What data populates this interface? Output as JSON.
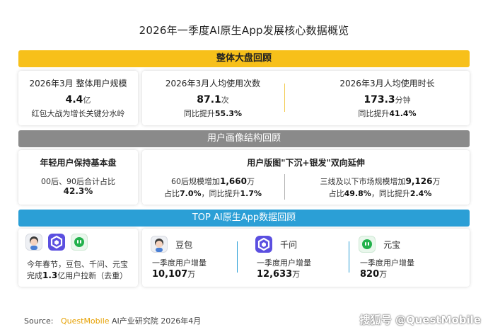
{
  "title": "2026年一季度AI原生App发展核心数据概览",
  "section1": {
    "bar": "整体大盘回顾",
    "users": {
      "head": "2026年3月 整体用户规模",
      "value": "4.4",
      "unit": "亿",
      "note": "红包大战为增长关键分水岭"
    },
    "frequency": {
      "head": "2026年3月人均使用次数",
      "value": "87.1",
      "unit": "次",
      "growth_label": "同比提升",
      "growth_value": "55.3%"
    },
    "duration": {
      "head": "2026年3月人均使用时长",
      "value": "173.3",
      "unit": "分钟",
      "growth_label": "同比提升",
      "growth_value": "41.4%"
    }
  },
  "section2": {
    "bar": "用户画像结构回顾",
    "young": {
      "head": "年轻用户保持基本盘",
      "line1": "00后、90后合计占比",
      "value": "42.3%"
    },
    "spread": {
      "head": "用户版图\"下沉+银发\"双向延伸",
      "left": {
        "l1_prefix": "60后规模增加",
        "l1_value": "1,660",
        "l1_unit": "万",
        "share_label": "占比",
        "share_value": "7.0%",
        "growth_label": "，同比提升",
        "growth_value": "1.7%"
      },
      "right": {
        "l1_prefix": "三线及以下市场规模增加",
        "l1_value": "9,126",
        "l1_unit": "万",
        "share_label": "占比",
        "share_value": "49.8%",
        "growth_label": "，同比提升",
        "growth_value": "2.4%"
      }
    }
  },
  "section3": {
    "bar": "TOP AI原生App数据回顾",
    "summary": {
      "line1": "今年春节，豆包、千问、元宝",
      "line2_prefix": "完成",
      "line2_value": "1.3",
      "line2_suffix": "亿用户拉新（去重）"
    },
    "apps": [
      {
        "name": "豆包",
        "metric": "一季度用户增量",
        "value": "10,107",
        "unit": "万",
        "icon": "doubao-icon",
        "accent": "#2b9fd6"
      },
      {
        "name": "千问",
        "metric": "一季度用户增量",
        "value": "12,633",
        "unit": "万",
        "icon": "qianwen-icon",
        "accent": "#5b4fe0"
      },
      {
        "name": "元宝",
        "metric": "一季度用户增量",
        "value": "820",
        "unit": "万",
        "icon": "yuanbao-icon",
        "accent": "#22b14c"
      }
    ]
  },
  "footer": {
    "source_label": "Source:",
    "source_brand": "QuestMobile",
    "source_rest": "AI产业研究院 2026年4月",
    "watermark": "搜狐号 @QuestMobile"
  },
  "colors": {
    "yellow": "#f7c01a",
    "gray": "#8a8a8a",
    "blue": "#2b9fd6",
    "divider": "#f2c94c",
    "brand_orange": "#e6a000"
  }
}
